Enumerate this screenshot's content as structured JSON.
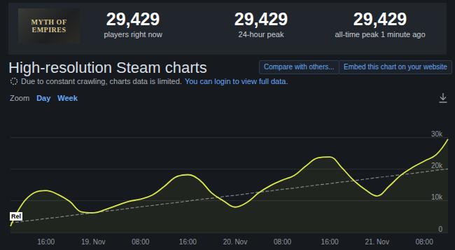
{
  "header": {
    "logo": "Myth of Empires",
    "stats": [
      {
        "value": "29,429",
        "label": "players right now"
      },
      {
        "value": "29,429",
        "label": "24-hour peak"
      },
      {
        "value": "29,429",
        "label": "all-time peak 1 minute ago"
      }
    ]
  },
  "page": {
    "heading": "High-resolution Steam charts",
    "buttons": [
      "Compare with others...",
      "Embed this chart on your website"
    ],
    "notice": "Due to constant crawling, charts data is limited.",
    "notice_link": "You can login to view full data.",
    "zoom_label": "Zoom",
    "zoom_options": [
      "Day",
      "Week"
    ]
  },
  "chart_data": {
    "type": "line",
    "categories": [
      null,
      null,
      null,
      "16:00",
      null,
      null,
      null,
      "19. Nov",
      null,
      null,
      null,
      "08:00",
      null,
      null,
      null,
      "16:00",
      null,
      null,
      null,
      "20. Nov",
      null,
      null,
      null,
      "08:00",
      null,
      null,
      null,
      "16:00",
      null,
      null,
      null,
      "21. Nov",
      null,
      null,
      null,
      "08:00",
      null,
      null
    ],
    "series": [
      {
        "color": "#dbe64c",
        "line_style": "solid",
        "values": [
          2000,
          9000,
          12500,
          13200,
          12000,
          9800,
          6500,
          6200,
          7200,
          8500,
          9800,
          10500,
          11800,
          14500,
          17500,
          18200,
          16500,
          12500,
          10000,
          8000,
          9500,
          12500,
          14800,
          16500,
          18000,
          21000,
          23500,
          23800,
          20500,
          16500,
          13500,
          11500,
          14500,
          18000,
          20500,
          22500,
          24500,
          29429
        ]
      },
      {
        "color": "#7d848c",
        "line_style": "dashed",
        "values": [
          3000,
          3500,
          3900,
          4400,
          4800,
          5300,
          5800,
          6200,
          6700,
          7100,
          7600,
          8100,
          8500,
          9000,
          9400,
          9900,
          10400,
          10800,
          11300,
          11700,
          12200,
          12700,
          13100,
          13600,
          14000,
          14500,
          15000,
          15400,
          15900,
          16300,
          16800,
          17300,
          17700,
          18200,
          18600,
          19100,
          19600,
          20000
        ]
      }
    ],
    "annotations": [
      {
        "text": "Rel",
        "index": 0
      }
    ],
    "ylim": [
      0,
      30000
    ],
    "yticks": [
      0,
      {
        "value": 10000,
        "label": "10k"
      },
      {
        "value": 20000,
        "label": "20k"
      },
      {
        "value": 30000,
        "label": "30k"
      }
    ],
    "grid": true
  }
}
